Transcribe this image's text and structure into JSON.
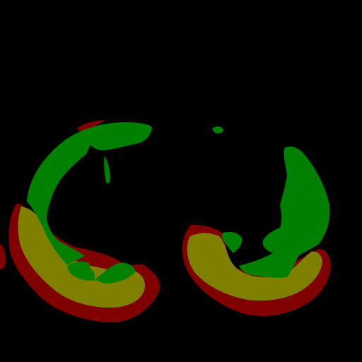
{
  "image": {
    "kind": "segmentation-mask",
    "background_color": "#000000",
    "classes": [
      {
        "name": "outer-band",
        "color": "#800000"
      },
      {
        "name": "middle-band",
        "color": "#808000"
      },
      {
        "name": "inner-region",
        "color": "#008000"
      }
    ]
  }
}
